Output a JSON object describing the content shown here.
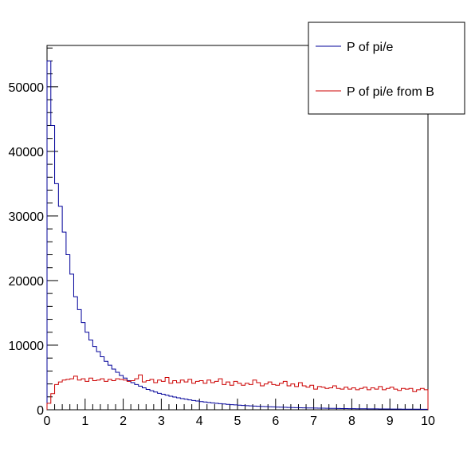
{
  "chart_data": {
    "type": "line",
    "style": "step-histogram",
    "title": "",
    "xlabel": "",
    "ylabel": "",
    "xlim": [
      0,
      10
    ],
    "ylim": [
      0,
      56400
    ],
    "bin_width": 0.1,
    "x_ticks": [
      "0",
      "1",
      "2",
      "3",
      "4",
      "5",
      "6",
      "7",
      "8",
      "9",
      "10"
    ],
    "y_ticks": [
      "0",
      "10000",
      "20000",
      "30000",
      "40000",
      "50000"
    ],
    "grid": false,
    "legend_position": "top-right",
    "series": [
      {
        "name": "P of pi/e",
        "color": "#000099",
        "values": [
          54000,
          44000,
          35000,
          31500,
          27500,
          24000,
          21000,
          17500,
          15500,
          13500,
          12000,
          10800,
          9800,
          9000,
          8200,
          7500,
          6900,
          6300,
          5800,
          5300,
          4900,
          4500,
          4200,
          3900,
          3650,
          3400,
          3150,
          2950,
          2750,
          2550,
          2400,
          2250,
          2100,
          1980,
          1850,
          1730,
          1630,
          1530,
          1440,
          1350,
          1270,
          1200,
          1130,
          1060,
          1000,
          940,
          890,
          840,
          790,
          750,
          710,
          670,
          630,
          600,
          570,
          540,
          510,
          490,
          460,
          440,
          420,
          400,
          380,
          360,
          345,
          330,
          315,
          300,
          285,
          270,
          260,
          250,
          240,
          230,
          220,
          210,
          200,
          190,
          180,
          175,
          170,
          160,
          155,
          150,
          145,
          140,
          135,
          130,
          125,
          120,
          115,
          110,
          105,
          100,
          95,
          90,
          88,
          85,
          82,
          80
        ]
      },
      {
        "name": "P of pi/e from B",
        "color": "#cc0000",
        "values": [
          1000,
          2500,
          3900,
          4300,
          4600,
          4700,
          4800,
          5200,
          4600,
          4800,
          4400,
          4900,
          4500,
          4600,
          4800,
          4400,
          4700,
          4500,
          4800,
          4700,
          4600,
          4400,
          4500,
          4800,
          5400,
          4300,
          4500,
          4700,
          4200,
          4600,
          4400,
          5000,
          4100,
          4500,
          4200,
          4600,
          4300,
          4700,
          4100,
          4400,
          4500,
          4100,
          4600,
          4200,
          4400,
          4800,
          3900,
          4300,
          3800,
          4400,
          4100,
          3800,
          4100,
          3900,
          4600,
          4200,
          3700,
          4000,
          4300,
          3900,
          3800,
          4100,
          4400,
          3700,
          4000,
          3600,
          4200,
          3700,
          3500,
          3800,
          3200,
          3600,
          3500,
          3300,
          3400,
          3700,
          3300,
          3200,
          3500,
          3200,
          3400,
          3100,
          3300,
          3500,
          3100,
          3400,
          3200,
          3600,
          3100,
          3300,
          3500,
          3200,
          3000,
          3300,
          3200,
          3300,
          2800,
          3100,
          3300,
          3100
        ]
      }
    ]
  }
}
